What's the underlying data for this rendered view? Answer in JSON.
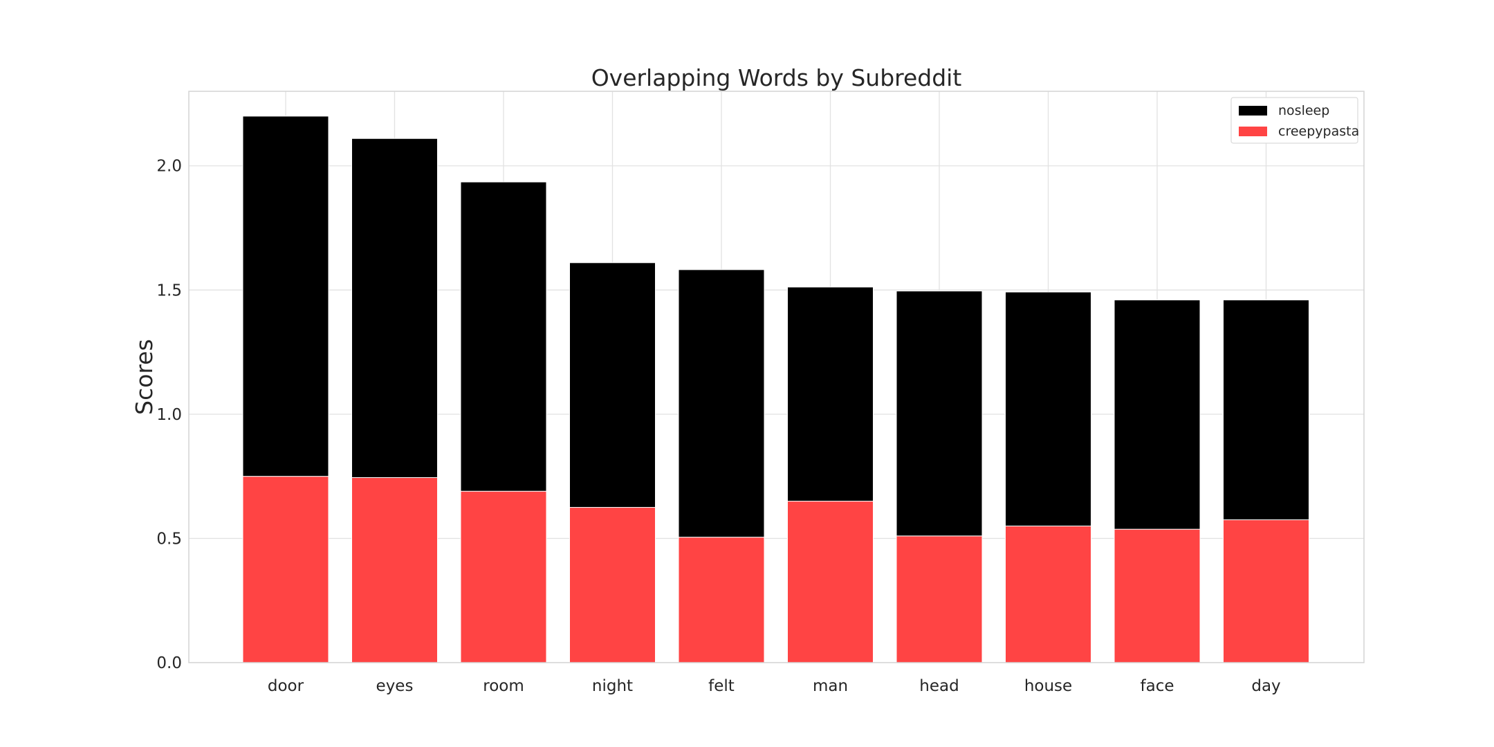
{
  "chart_data": {
    "type": "bar",
    "stacked": true,
    "title": "Overlapping Words by Subreddit",
    "xlabel": "",
    "ylabel": "Scores",
    "ylim": [
      0,
      2.3
    ],
    "yticks": [
      0.0,
      0.5,
      1.0,
      1.5,
      2.0
    ],
    "ytick_labels": [
      "0.0",
      "0.5",
      "1.0",
      "1.5",
      "2.0"
    ],
    "grid": true,
    "legend_position": "top-right",
    "categories": [
      "door",
      "eyes",
      "room",
      "night",
      "felt",
      "man",
      "head",
      "house",
      "face",
      "day"
    ],
    "series": [
      {
        "name": "creepypasta",
        "color": "#ff4444",
        "values": [
          0.75,
          0.745,
          0.69,
          0.625,
          0.505,
          0.65,
          0.51,
          0.55,
          0.537,
          0.575
        ]
      },
      {
        "name": "nosleep",
        "color": "#000000",
        "values": [
          1.45,
          1.365,
          1.245,
          0.985,
          1.077,
          0.862,
          0.986,
          0.942,
          0.923,
          0.885
        ]
      }
    ],
    "legend": [
      {
        "name": "nosleep",
        "color": "#000000"
      },
      {
        "name": "creepypasta",
        "color": "#ff4444"
      }
    ]
  }
}
